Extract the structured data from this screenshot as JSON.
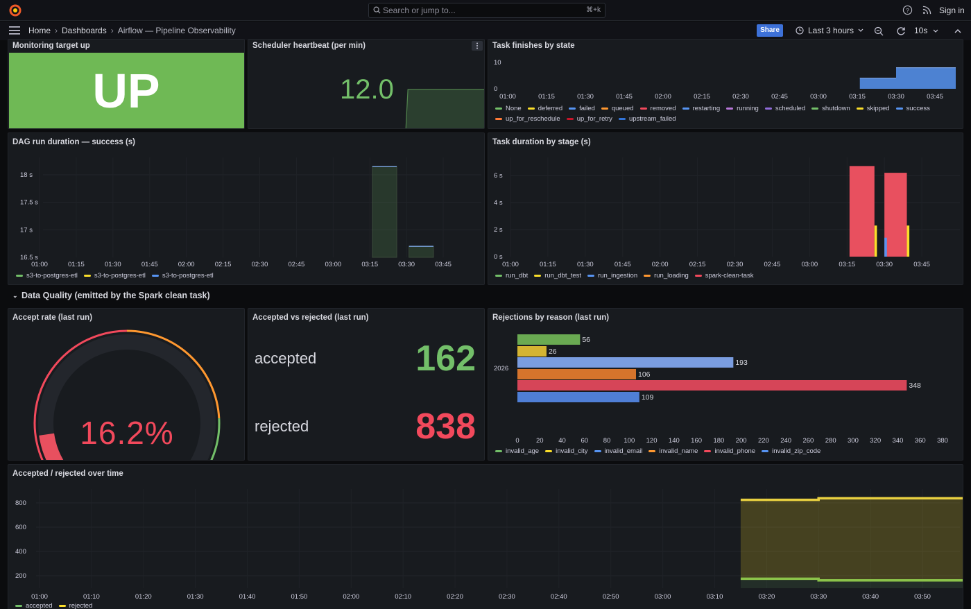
{
  "header": {
    "search_placeholder": "Search or jump to...",
    "search_shortcut": "⌘+k",
    "signin_label": "Sign in",
    "logo_icon": "grafana-logo",
    "help_icon": "help-circle-icon",
    "news_icon": "rss-icon"
  },
  "nav": {
    "breadcrumb": [
      "Home",
      "Dashboards",
      "Airflow — Pipeline Observability"
    ],
    "share_label": "Share",
    "time_range": "Last 3 hours",
    "refresh_interval": "10s"
  },
  "colors": {
    "green": "#73bf69",
    "yellow": "#fade2a",
    "blue": "#5794f2",
    "orange": "#ff9830",
    "red": "#f2495c",
    "purple": "#b877d9",
    "accent": "#3d71d9"
  },
  "panels": {
    "monitoring": {
      "title": "Monitoring target up",
      "value": "UP"
    },
    "heartbeat": {
      "title": "Scheduler heartbeat (per min)",
      "value": "12.0"
    },
    "task_finishes": {
      "title": "Task finishes by state",
      "legend": [
        "None",
        "deferred",
        "failed",
        "queued",
        "removed",
        "restarting",
        "running",
        "scheduled",
        "shutdown",
        "skipped",
        "success",
        "up_for_reschedule",
        "up_for_retry",
        "upstream_failed"
      ],
      "legend_colors": [
        "#73bf69",
        "#fade2a",
        "#5794f2",
        "#ff9830",
        "#f2495c",
        "#5794f2",
        "#b877d9",
        "#8f6bd9",
        "#73bf69",
        "#fade2a",
        "#5794f2",
        "#ff7a38",
        "#c4162a",
        "#3274d9"
      ]
    },
    "dag_duration": {
      "title": "DAG run duration — success (s)",
      "legend": [
        "s3-to-postgres-etl",
        "s3-to-postgres-etl",
        "s3-to-postgres-etl"
      ],
      "legend_colors": [
        "#73bf69",
        "#fade2a",
        "#5794f2"
      ]
    },
    "task_duration": {
      "title": "Task duration by stage (s)",
      "legend": [
        "run_dbt",
        "run_dbt_test",
        "run_ingestion",
        "run_loading",
        "spark-clean-task"
      ],
      "legend_colors": [
        "#73bf69",
        "#fade2a",
        "#5794f2",
        "#ff9830",
        "#f2495c"
      ]
    },
    "accept_rate": {
      "title": "Accept rate (last run)",
      "value": "16.2%",
      "fraction": 0.162
    },
    "accepted_rejected": {
      "title": "Accepted vs rejected (last run)",
      "accepted_label": "accepted",
      "accepted_value": "162",
      "rejected_label": "rejected",
      "rejected_value": "838"
    },
    "rejections": {
      "title": "Rejections by reason (last run)",
      "legend": [
        "invalid_age",
        "invalid_city",
        "invalid_email",
        "invalid_name",
        "invalid_phone",
        "invalid_zip_code"
      ],
      "legend_colors": [
        "#73bf69",
        "#fade2a",
        "#5794f2",
        "#ff9830",
        "#f2495c",
        "#5794f2"
      ]
    },
    "over_time": {
      "title": "Accepted / rejected over time",
      "legend": [
        "accepted",
        "rejected"
      ],
      "legend_colors": [
        "#73bf69",
        "#fade2a"
      ]
    }
  },
  "row": {
    "title": "Data Quality (emitted by the Spark clean task)",
    "chevron_icon": "chevron-down-icon"
  },
  "chart_data": [
    {
      "id": "heartbeat",
      "type": "area",
      "ylabel": "",
      "x": [
        "03:21",
        "03:22",
        "03:30",
        "03:40",
        "03:50",
        "04:00"
      ],
      "values": [
        0,
        12,
        12,
        12,
        12,
        12
      ]
    },
    {
      "id": "task_finishes",
      "type": "bar",
      "x_ticks": [
        "01:00",
        "01:15",
        "01:30",
        "01:45",
        "02:00",
        "02:15",
        "02:30",
        "02:45",
        "03:00",
        "03:15",
        "03:30",
        "03:45"
      ],
      "y_ticks": [
        "0",
        "10"
      ],
      "ylim": [
        0,
        10
      ],
      "series": [
        {
          "name": "success",
          "steps": [
            {
              "from": "03:16",
              "to": "03:30",
              "value": 4
            },
            {
              "from": "03:30",
              "to": "04:00",
              "value": 8
            }
          ]
        }
      ]
    },
    {
      "id": "dag_duration",
      "type": "bar",
      "x_ticks": [
        "01:00",
        "01:15",
        "01:30",
        "01:45",
        "02:00",
        "02:15",
        "02:30",
        "02:45",
        "03:00",
        "03:15",
        "03:30",
        "03:45"
      ],
      "y_ticks": [
        "16.5 s",
        "17 s",
        "17.5 s",
        "18 s"
      ],
      "ylim": [
        16.5,
        18.2
      ],
      "bars": [
        {
          "from": "03:16",
          "to": "03:26",
          "value": 18.15
        },
        {
          "from": "03:31",
          "to": "03:41",
          "value": 16.7
        }
      ]
    },
    {
      "id": "task_duration",
      "type": "bar",
      "x_ticks": [
        "01:00",
        "01:15",
        "01:30",
        "01:45",
        "02:00",
        "02:15",
        "02:30",
        "02:45",
        "03:00",
        "03:15",
        "03:30",
        "03:45"
      ],
      "y_ticks": [
        "0 s",
        "2 s",
        "4 s",
        "6 s"
      ],
      "ylim": [
        0,
        7
      ],
      "series": [
        {
          "name": "spark-clean-task",
          "bars": [
            {
              "from": "03:16",
              "to": "03:26",
              "value": 6.7
            },
            {
              "from": "03:30",
              "to": "03:39",
              "value": 6.2
            }
          ]
        },
        {
          "name": "run_dbt_test",
          "bars": [
            {
              "from": "03:26",
              "to": "03:27",
              "value": 2.3
            },
            {
              "from": "03:39",
              "to": "03:40",
              "value": 2.3
            }
          ]
        },
        {
          "name": "run_ingestion",
          "bars": [
            {
              "from": "03:30",
              "to": "03:31",
              "value": 1.4
            }
          ]
        }
      ]
    },
    {
      "id": "rejections",
      "type": "bar",
      "orientation": "horizontal",
      "group": "2026",
      "categories": [
        "invalid_age",
        "invalid_city",
        "invalid_email",
        "invalid_name",
        "invalid_phone",
        "invalid_zip_code"
      ],
      "values": [
        56,
        26,
        193,
        106,
        348,
        109
      ],
      "x_ticks": [
        "0",
        "20",
        "40",
        "60",
        "80",
        "100",
        "120",
        "140",
        "160",
        "180",
        "200",
        "220",
        "240",
        "260",
        "280",
        "300",
        "320",
        "340",
        "360",
        "380"
      ],
      "xlim": [
        0,
        380
      ]
    },
    {
      "id": "over_time",
      "type": "line",
      "x_ticks": [
        "01:00",
        "01:10",
        "01:20",
        "01:30",
        "01:40",
        "01:50",
        "02:00",
        "02:10",
        "02:20",
        "02:30",
        "02:40",
        "02:50",
        "03:00",
        "03:10",
        "03:20",
        "03:30",
        "03:40",
        "03:50"
      ],
      "y_ticks": [
        "200",
        "400",
        "600",
        "800"
      ],
      "ylim": [
        100,
        880
      ],
      "series": [
        {
          "name": "accepted",
          "x": [
            "03:15",
            "03:30",
            "03:30",
            "03:59"
          ],
          "values": [
            175,
            175,
            162,
            162
          ]
        },
        {
          "name": "rejected",
          "x": [
            "03:15",
            "03:30",
            "03:30",
            "03:59"
          ],
          "values": [
            825,
            825,
            838,
            838
          ]
        }
      ]
    }
  ]
}
